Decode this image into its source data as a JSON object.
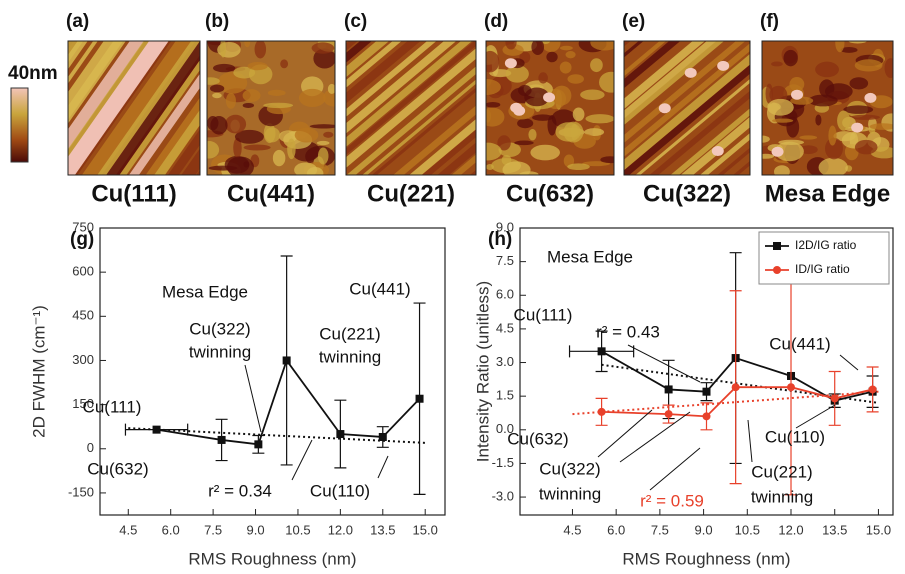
{
  "scale_label": "40nm",
  "panels": [
    {
      "label": "(a)",
      "caption": "Cu(111)"
    },
    {
      "label": "(b)",
      "caption": "Cu(441)"
    },
    {
      "label": "(c)",
      "caption": "Cu(221)"
    },
    {
      "label": "(d)",
      "caption": "Cu(632)"
    },
    {
      "label": "(e)",
      "caption": "Cu(322)"
    },
    {
      "label": "(f)",
      "caption": "Mesa Edge"
    }
  ],
  "chart_data": [
    {
      "type": "errorbar",
      "label": "(g)",
      "x_label": "RMS Roughness (nm)",
      "y_label": "2D FWHM (cm⁻¹)",
      "xlim": [
        3.5,
        15.7
      ],
      "xticks": [
        4.5,
        {
          "value": 6,
          "label": "6.0"
        },
        7.5,
        {
          "value": 9,
          "label": "9.0"
        },
        10.5,
        {
          "value": 12,
          "label": "12.0"
        },
        13.5,
        {
          "value": 15,
          "label": "15.0"
        }
      ],
      "ylim": [
        -225,
        750
      ],
      "yticks": [
        750,
        600,
        450,
        300,
        150,
        0,
        -150
      ],
      "x": [
        5.5,
        7.8,
        9.1,
        10.1,
        12.0,
        13.5,
        14.8
      ],
      "series": [
        {
          "color": "#111111",
          "marker": "square",
          "values": [
            65,
            30,
            15,
            300,
            50,
            40,
            170
          ],
          "yerr": [
            null,
            70,
            30,
            355,
            115,
            35,
            325
          ],
          "xerr": [
            1.1,
            null,
            null,
            null,
            null,
            null,
            null
          ]
        }
      ],
      "fits": [
        {
          "color": "#111111",
          "x": [
            4.5,
            15
          ],
          "y": [
            70,
            20
          ]
        }
      ],
      "annotations": [
        {
          "lines": [
            "Cu(111)"
          ]
        },
        {
          "lines": [
            "Mesa Edge"
          ]
        },
        {
          "lines": [
            "Cu(322)",
            "twinning"
          ]
        },
        {
          "lines": [
            "Cu(221)",
            "twinning"
          ]
        },
        {
          "lines": [
            "Cu(441)"
          ]
        },
        {
          "lines": [
            "Cu(632)"
          ]
        },
        {
          "lines": [
            "r² = 0.34"
          ]
        },
        {
          "lines": [
            "Cu(110)"
          ]
        }
      ]
    },
    {
      "type": "errorbar",
      "label": "(h)",
      "x_label": "RMS Roughness (nm)",
      "y_label": "Intensity Ratio (unitless)",
      "xlim": [
        2.7,
        15.5
      ],
      "xticks": [
        4.5,
        {
          "value": 6,
          "label": "6.0"
        },
        7.5,
        {
          "value": 9,
          "label": "9.0"
        },
        10.5,
        {
          "value": 12,
          "label": "12.0"
        },
        13.5,
        {
          "value": 15,
          "label": "15.0"
        }
      ],
      "ylim": [
        -3.8,
        9
      ],
      "yticks": [
        {
          "value": 9,
          "label": "9.0"
        },
        7.5,
        {
          "value": 6,
          "label": "6.0"
        },
        4.5,
        {
          "value": 3,
          "label": "3.0"
        },
        1.5,
        {
          "value": 0,
          "label": "0.0"
        },
        -1.5,
        {
          "value": -3,
          "label": "-3.0"
        }
      ],
      "x": [
        5.5,
        7.8,
        9.1,
        10.1,
        12.0,
        13.5,
        14.8
      ],
      "legend": "upper right",
      "series": [
        {
          "name": "I2D/IG ratio",
          "color": "#111111",
          "marker": "square",
          "values": [
            3.5,
            1.8,
            1.7,
            3.2,
            2.4,
            1.3,
            1.7
          ],
          "yerr": [
            0.9,
            1.3,
            0.4,
            4.7,
            null,
            0.3,
            0.7
          ],
          "xerr": [
            1.1,
            null,
            null,
            null,
            null,
            null,
            null
          ]
        },
        {
          "name": "ID/IG ratio",
          "color": "#e8412b",
          "marker": "circle",
          "values": [
            0.8,
            0.7,
            0.6,
            1.9,
            1.9,
            1.4,
            1.8
          ],
          "yerr": [
            0.6,
            0.4,
            0.6,
            4.3,
            4.8,
            1.2,
            1.0
          ],
          "xerr": [
            null,
            null,
            null,
            null,
            null,
            null,
            null
          ]
        }
      ],
      "fits": [
        {
          "color": "#111111",
          "x": [
            5.5,
            15
          ],
          "y": [
            2.9,
            1.2
          ]
        },
        {
          "color": "#e8412b",
          "x": [
            4.5,
            15
          ],
          "y": [
            0.7,
            1.7
          ]
        }
      ],
      "annotations": [
        {
          "lines": [
            "Mesa Edge"
          ]
        },
        {
          "lines": [
            "Cu(111)"
          ]
        },
        {
          "lines": [
            "r² = 0.43"
          ]
        },
        {
          "lines": [
            "Cu(441)"
          ]
        },
        {
          "lines": [
            "Cu(632)"
          ]
        },
        {
          "lines": [
            "Cu(322)",
            "twinning"
          ]
        },
        {
          "lines": [
            "r² = 0.59"
          ],
          "color": "#e8412b"
        },
        {
          "lines": [
            "Cu(110)"
          ]
        },
        {
          "lines": [
            "Cu(221)",
            "twinning"
          ]
        }
      ]
    }
  ]
}
